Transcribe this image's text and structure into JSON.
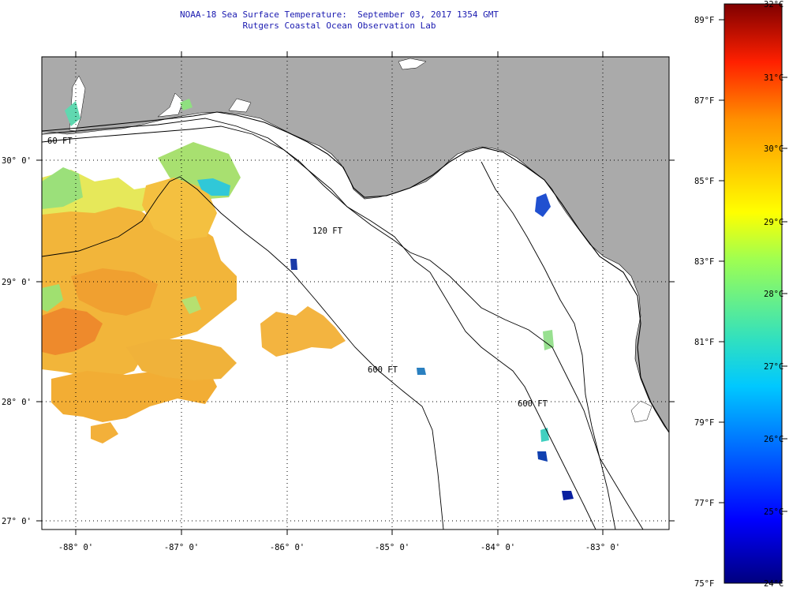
{
  "header": {
    "title": "NOAA-18 Sea Surface Temperature:  September 03, 2017 1354 GMT",
    "subtitle": "Rutgers Coastal Ocean Observation Lab"
  },
  "map": {
    "lon_labels": [
      "-88° 0'",
      "-87° 0'",
      "-86° 0'",
      "-85° 0'",
      "-84° 0'",
      "-83° 0'"
    ],
    "lat_labels": [
      "30° 0'",
      "29° 0'",
      "28° 0'",
      "27° 0'"
    ],
    "isobath_labels": [
      "120 FT",
      "600 FT",
      "60 FT",
      "600 FT"
    ],
    "colors": {
      "land": "#aaaaaa",
      "water": "#ffffff",
      "grid": "#000000"
    }
  },
  "colorbar": {
    "celsius_labels": [
      "32°C",
      "31°C",
      "30°C",
      "29°C",
      "28°C",
      "27°C",
      "26°C",
      "25°C",
      "24°C"
    ],
    "fahrenheit_labels": [
      "89°F",
      "87°F",
      "85°F",
      "83°F",
      "81°F",
      "79°F",
      "77°F",
      "75°F"
    ],
    "range_celsius": [
      24,
      32
    ],
    "range_fahrenheit": [
      75,
      89.6
    ]
  }
}
